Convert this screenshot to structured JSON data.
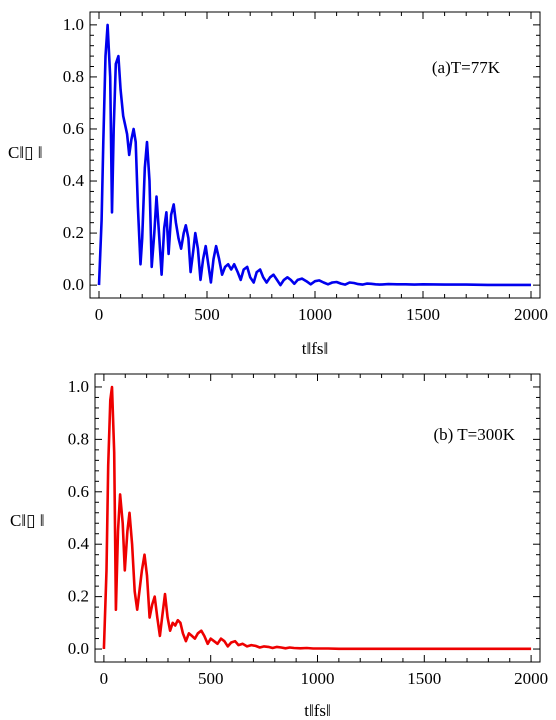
{
  "chart_data": [
    {
      "type": "line",
      "annotation": "(a)T=77K",
      "xlabel": "t‖fs‖",
      "ylabel": "C‖▯ ‖",
      "xlim": [
        0,
        2000
      ],
      "ylim": [
        0,
        1.0
      ],
      "xticks": [
        0,
        500,
        1000,
        1500,
        2000
      ],
      "yticks": [
        0.0,
        0.2,
        0.4,
        0.6,
        0.8,
        1.0
      ],
      "xtick_labels": [
        "0",
        "500",
        "1000",
        "1500",
        "2000"
      ],
      "ytick_labels": [
        "0.0",
        "0.2",
        "0.4",
        "0.6",
        "0.8",
        "1.0"
      ],
      "color": "#0000ee",
      "grid": false,
      "x": [
        0,
        12,
        20,
        30,
        40,
        52,
        60,
        68,
        78,
        90,
        100,
        112,
        120,
        130,
        140,
        150,
        160,
        170,
        180,
        192,
        200,
        212,
        222,
        234,
        244,
        256,
        266,
        278,
        290,
        302,
        312,
        322,
        334,
        346,
        356,
        368,
        380,
        392,
        402,
        414,
        424,
        436,
        446,
        458,
        470,
        482,
        494,
        506,
        518,
        530,
        542,
        556,
        570,
        584,
        598,
        612,
        626,
        642,
        656,
        670,
        686,
        700,
        716,
        730,
        746,
        760,
        776,
        792,
        808,
        824,
        840,
        856,
        872,
        888,
        904,
        920,
        940,
        960,
        980,
        1000,
        1020,
        1040,
        1060,
        1080,
        1100,
        1120,
        1140,
        1160,
        1180,
        1200,
        1220,
        1240,
        1260,
        1280,
        1300,
        1340,
        1380,
        1420,
        1460,
        1500,
        1600,
        1700,
        1800,
        1900,
        2000
      ],
      "y": [
        0.0,
        0.25,
        0.55,
        0.88,
        1.0,
        0.8,
        0.28,
        0.6,
        0.85,
        0.88,
        0.75,
        0.65,
        0.62,
        0.58,
        0.5,
        0.56,
        0.6,
        0.55,
        0.3,
        0.08,
        0.18,
        0.45,
        0.55,
        0.4,
        0.07,
        0.2,
        0.34,
        0.2,
        0.04,
        0.22,
        0.28,
        0.12,
        0.27,
        0.31,
        0.24,
        0.18,
        0.14,
        0.2,
        0.23,
        0.18,
        0.05,
        0.13,
        0.2,
        0.14,
        0.02,
        0.1,
        0.15,
        0.08,
        0.01,
        0.1,
        0.15,
        0.1,
        0.04,
        0.07,
        0.08,
        0.06,
        0.08,
        0.05,
        0.02,
        0.06,
        0.07,
        0.03,
        0.01,
        0.05,
        0.06,
        0.03,
        0.01,
        0.03,
        0.04,
        0.02,
        0.0,
        0.02,
        0.03,
        0.02,
        0.005,
        0.02,
        0.025,
        0.015,
        0.003,
        0.015,
        0.018,
        0.01,
        0.003,
        0.01,
        0.012,
        0.006,
        0.002,
        0.01,
        0.008,
        0.004,
        0.002,
        0.006,
        0.005,
        0.003,
        0.002,
        0.004,
        0.003,
        0.003,
        0.002,
        0.003,
        0.002,
        0.002,
        0.001,
        0.001,
        0.001
      ]
    },
    {
      "type": "line",
      "annotation": "(b) T=300K",
      "xlabel": "t‖fs‖",
      "ylabel": "C‖▯ ‖",
      "xlim": [
        0,
        2000
      ],
      "ylim": [
        0,
        1.0
      ],
      "xticks": [
        0,
        500,
        1000,
        1500,
        2000
      ],
      "yticks": [
        0.0,
        0.2,
        0.4,
        0.6,
        0.8,
        1.0
      ],
      "xtick_labels": [
        "0",
        "500",
        "1000",
        "1500",
        "2000"
      ],
      "ytick_labels": [
        "0.0",
        "0.2",
        "0.4",
        "0.6",
        "0.8",
        "1.0"
      ],
      "color": "#ee0000",
      "grid": false,
      "x": [
        0,
        12,
        20,
        30,
        38,
        48,
        56,
        66,
        76,
        88,
        98,
        110,
        120,
        132,
        144,
        156,
        166,
        178,
        190,
        202,
        214,
        226,
        238,
        250,
        262,
        274,
        286,
        298,
        310,
        322,
        334,
        346,
        358,
        370,
        384,
        398,
        412,
        426,
        440,
        456,
        470,
        486,
        500,
        516,
        532,
        548,
        564,
        580,
        596,
        614,
        630,
        650,
        670,
        690,
        710,
        730,
        750,
        770,
        790,
        810,
        830,
        850,
        870,
        890,
        920,
        950,
        980,
        1000,
        1050,
        1100,
        1200,
        1300,
        1400,
        1500,
        1600,
        1700,
        1800,
        1900,
        2000
      ],
      "y": [
        0.0,
        0.3,
        0.7,
        0.95,
        1.0,
        0.75,
        0.15,
        0.45,
        0.59,
        0.48,
        0.3,
        0.45,
        0.52,
        0.4,
        0.22,
        0.15,
        0.22,
        0.3,
        0.36,
        0.28,
        0.12,
        0.17,
        0.2,
        0.12,
        0.05,
        0.13,
        0.21,
        0.12,
        0.07,
        0.1,
        0.09,
        0.11,
        0.1,
        0.06,
        0.03,
        0.06,
        0.05,
        0.04,
        0.06,
        0.07,
        0.05,
        0.02,
        0.04,
        0.03,
        0.02,
        0.04,
        0.03,
        0.01,
        0.025,
        0.03,
        0.015,
        0.02,
        0.01,
        0.015,
        0.012,
        0.006,
        0.01,
        0.008,
        0.004,
        0.008,
        0.006,
        0.003,
        0.006,
        0.004,
        0.003,
        0.004,
        0.002,
        0.002,
        0.002,
        0.001,
        0.001,
        0.001,
        0.001,
        0.001,
        0.001,
        0.001,
        0.001,
        0.001,
        0.001
      ]
    }
  ]
}
